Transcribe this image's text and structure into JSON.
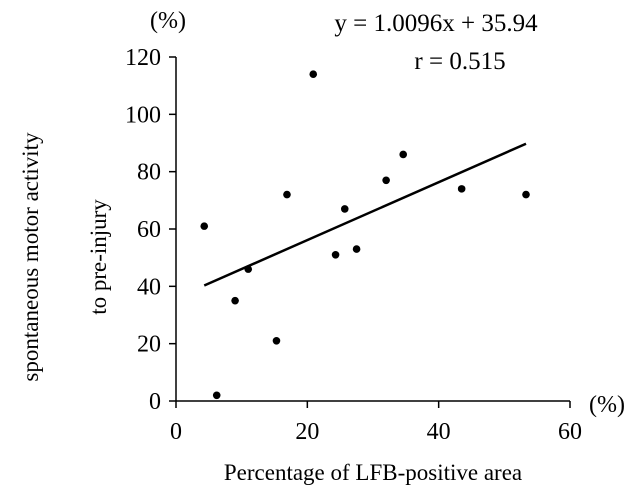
{
  "chart_data": {
    "type": "scatter",
    "x_unit": "(%)",
    "y_unit": "(%)",
    "xlabel": "Percentage of LFB-positive area",
    "ylabel_line1": "spontaneous motor activity",
    "ylabel_line2": "to pre-injury",
    "xlim": [
      0,
      60
    ],
    "ylim": [
      0,
      120
    ],
    "x_ticks": [
      0,
      20,
      40,
      60
    ],
    "y_ticks": [
      0,
      20,
      40,
      60,
      80,
      100,
      120
    ],
    "grid": false,
    "points": [
      {
        "x": 4.3,
        "y": 61
      },
      {
        "x": 6.2,
        "y": 2
      },
      {
        "x": 9.0,
        "y": 35
      },
      {
        "x": 11.0,
        "y": 46
      },
      {
        "x": 15.3,
        "y": 21
      },
      {
        "x": 16.9,
        "y": 72
      },
      {
        "x": 20.9,
        "y": 114
      },
      {
        "x": 24.3,
        "y": 51
      },
      {
        "x": 25.7,
        "y": 67
      },
      {
        "x": 27.5,
        "y": 53
      },
      {
        "x": 32.0,
        "y": 77
      },
      {
        "x": 34.6,
        "y": 86
      },
      {
        "x": 43.5,
        "y": 74
      },
      {
        "x": 53.3,
        "y": 72
      }
    ],
    "regression": {
      "slope": 1.0096,
      "intercept": 35.94,
      "x_range": [
        4.3,
        53.3
      ]
    },
    "annotations": {
      "equation": "y = 1.0096x + 35.94",
      "r_value": "r = 0.515"
    }
  }
}
